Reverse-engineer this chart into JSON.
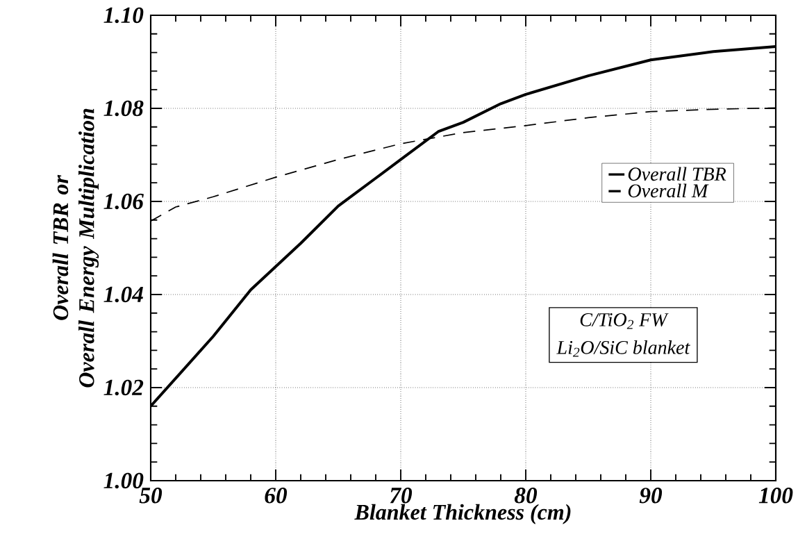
{
  "chart_data": {
    "type": "line",
    "xlabel": "Blanket Thickness (cm)",
    "ylabel": "Overall TBR or Overall Energy Multiplication",
    "xlim": [
      50,
      100
    ],
    "ylim": [
      1.0,
      1.1
    ],
    "xticks": [
      50,
      60,
      70,
      80,
      90,
      100
    ],
    "yticks": [
      {
        "value": 1.0,
        "label": "1.00"
      },
      {
        "value": 1.02,
        "label": "1.02"
      },
      {
        "value": 1.04,
        "label": "1.04"
      },
      {
        "value": 1.06,
        "label": "1.06"
      },
      {
        "value": 1.08,
        "label": "1.08"
      },
      {
        "value": 1.1,
        "label": "1.10"
      }
    ],
    "grid": true,
    "legend": "right",
    "marker": "none",
    "series": [
      {
        "name": "Overall TBR",
        "color": "#000000",
        "line_style": "solid",
        "x": [
          50,
          52,
          55,
          58,
          60,
          62,
          65,
          68,
          70,
          73,
          75,
          78,
          80,
          85,
          90,
          95,
          100
        ],
        "values": [
          1.016,
          1.022,
          1.031,
          1.041,
          1.046,
          1.051,
          1.059,
          1.065,
          1.069,
          1.075,
          1.077,
          1.081,
          1.083,
          1.087,
          1.0904,
          1.0922,
          1.0933
        ]
      },
      {
        "name": "Overall M",
        "color": "#000000",
        "line_style": "dashed",
        "x": [
          50,
          52,
          55,
          60,
          65,
          70,
          75,
          80,
          85,
          90,
          95,
          100
        ],
        "values": [
          1.0558,
          1.0588,
          1.061,
          1.0652,
          1.069,
          1.0724,
          1.0748,
          1.0763,
          1.078,
          1.0793,
          1.0798,
          1.0801
        ]
      }
    ],
    "annotations": [
      "C/TiO$_{2}$ FW",
      "Li$_{2}$O/SiC blanket"
    ]
  }
}
